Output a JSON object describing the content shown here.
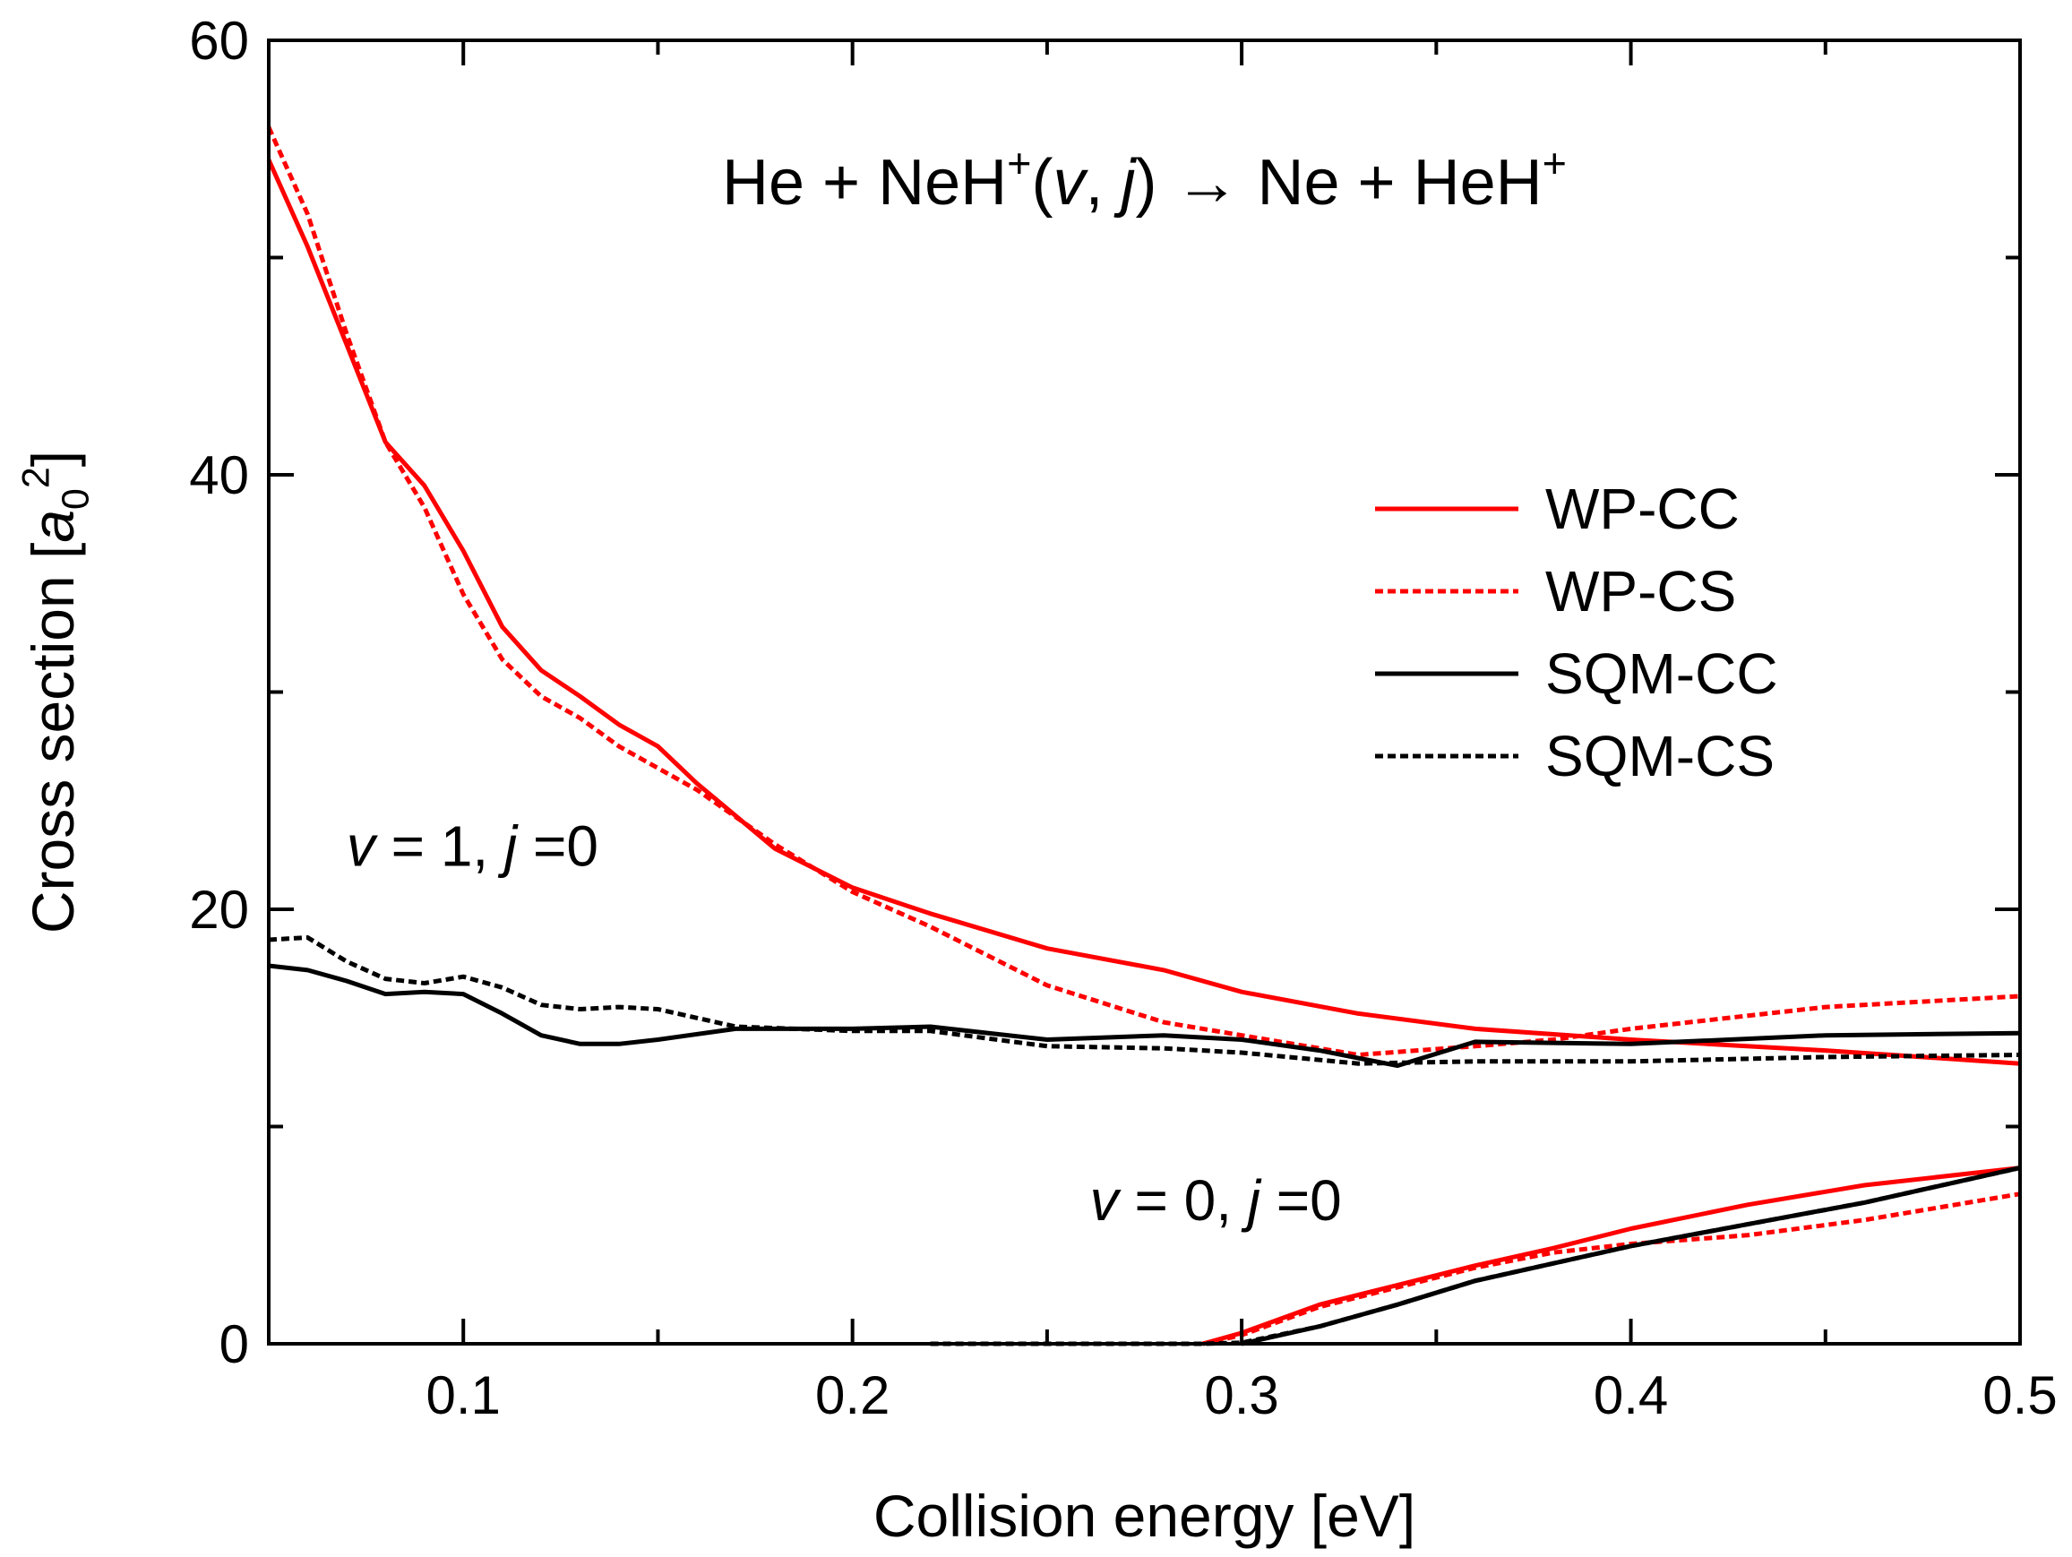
{
  "chart_data": {
    "type": "line",
    "title": {
      "parts": [
        {
          "text": "He + NeH",
          "style": "normal"
        },
        {
          "text": "+",
          "style": "sup"
        },
        {
          "text": "(",
          "style": "normal"
        },
        {
          "text": "v",
          "style": "italic"
        },
        {
          "text": ", ",
          "style": "normal"
        },
        {
          "text": "j",
          "style": "italic"
        },
        {
          "text": ") → Ne + HeH",
          "style": "normal"
        },
        {
          "text": "+",
          "style": "sup"
        }
      ]
    },
    "xlabel": "Collision energy [eV]",
    "ylabel": {
      "parts": [
        {
          "text": "Cross section [",
          "style": "normal"
        },
        {
          "text": "a",
          "style": "italic"
        },
        {
          "text": "0",
          "style": "sub"
        },
        {
          "text": "2",
          "style": "sup"
        },
        {
          "text": "]",
          "style": "normal"
        }
      ]
    },
    "xlim": [
      0.05,
      0.5
    ],
    "ylim": [
      0,
      60
    ],
    "xticks": [
      0.1,
      0.2,
      0.3,
      0.4,
      0.5
    ],
    "xtick_labels": [
      "0.1",
      "0.2",
      "0.3",
      "0.4",
      "0.5"
    ],
    "yticks": [
      0,
      20,
      40,
      60
    ],
    "ytick_labels": [
      "0",
      "20",
      "40",
      "60"
    ],
    "yminor": [
      10,
      30,
      50
    ],
    "grid": false,
    "legend": {
      "position": "right"
    },
    "colors": {
      "red": "#ff0000",
      "black": "#000000"
    },
    "annotations": [
      {
        "id": "v1",
        "x": 0.07,
        "y": 22,
        "parts": [
          {
            "text": "v",
            "style": "italic"
          },
          {
            "text": " = 1, ",
            "style": "normal"
          },
          {
            "text": "j",
            "style": "italic"
          },
          {
            "text": " =0",
            "style": "normal"
          }
        ]
      },
      {
        "id": "v0",
        "x": 0.261,
        "y": 5.7,
        "parts": [
          {
            "text": "v",
            "style": "italic"
          },
          {
            "text": " = 0, ",
            "style": "normal"
          },
          {
            "text": "j",
            "style": "italic"
          },
          {
            "text": " =0",
            "style": "normal"
          }
        ]
      }
    ],
    "series": [
      {
        "name": "WP-CC",
        "group": "v=1,j=0",
        "color": "#ff0000",
        "dash": "solid",
        "x": [
          0.05,
          0.06,
          0.07,
          0.08,
          0.09,
          0.1,
          0.11,
          0.12,
          0.13,
          0.14,
          0.15,
          0.16,
          0.18,
          0.2,
          0.22,
          0.25,
          0.28,
          0.3,
          0.33,
          0.36,
          0.4,
          0.45,
          0.5
        ],
        "y": [
          54.5,
          50.5,
          46,
          41.5,
          39.5,
          36.5,
          33,
          31,
          29.8,
          28.5,
          27.5,
          25.8,
          22.8,
          21,
          19.8,
          18.2,
          17.2,
          16.2,
          15.2,
          14.5,
          14,
          13.5,
          12.9
        ]
      },
      {
        "name": "WP-CS",
        "group": "v=1,j=0",
        "color": "#ff0000",
        "dash": "dashed",
        "x": [
          0.05,
          0.06,
          0.07,
          0.08,
          0.09,
          0.1,
          0.11,
          0.12,
          0.13,
          0.14,
          0.15,
          0.16,
          0.18,
          0.2,
          0.22,
          0.25,
          0.28,
          0.3,
          0.33,
          0.36,
          0.38,
          0.4,
          0.45,
          0.5
        ],
        "y": [
          56,
          52,
          46.5,
          41.5,
          38.5,
          34.5,
          31.5,
          29.8,
          28.8,
          27.5,
          26.5,
          25.5,
          23,
          20.8,
          19.2,
          16.5,
          14.8,
          14.2,
          13.3,
          13.7,
          14,
          14.5,
          15.5,
          16
        ]
      },
      {
        "name": "SQM-CC",
        "group": "v=1,j=0",
        "color": "#000000",
        "dash": "solid",
        "x": [
          0.05,
          0.06,
          0.07,
          0.08,
          0.09,
          0.1,
          0.11,
          0.12,
          0.13,
          0.14,
          0.15,
          0.17,
          0.2,
          0.22,
          0.25,
          0.28,
          0.3,
          0.32,
          0.34,
          0.36,
          0.4,
          0.45,
          0.5
        ],
        "y": [
          17.4,
          17.2,
          16.7,
          16.1,
          16.2,
          16.1,
          15.2,
          14.2,
          13.8,
          13.8,
          14,
          14.5,
          14.5,
          14.6,
          14,
          14.2,
          14,
          13.5,
          12.8,
          13.9,
          13.8,
          14.2,
          14.3
        ]
      },
      {
        "name": "SQM-CS",
        "group": "v=1,j=0",
        "color": "#000000",
        "dash": "dashed",
        "x": [
          0.05,
          0.06,
          0.07,
          0.08,
          0.09,
          0.1,
          0.11,
          0.12,
          0.13,
          0.14,
          0.15,
          0.17,
          0.2,
          0.22,
          0.25,
          0.28,
          0.3,
          0.33,
          0.36,
          0.4,
          0.45,
          0.5
        ],
        "y": [
          18.6,
          18.7,
          17.6,
          16.8,
          16.6,
          16.9,
          16.4,
          15.6,
          15.4,
          15.5,
          15.4,
          14.6,
          14.4,
          14.4,
          13.7,
          13.6,
          13.4,
          12.9,
          13,
          13,
          13.2,
          13.3
        ]
      },
      {
        "name": "WP-CC",
        "group": "v=0,j=0",
        "color": "#ff0000",
        "dash": "solid",
        "x": [
          0.29,
          0.3,
          0.32,
          0.34,
          0.36,
          0.38,
          0.4,
          0.43,
          0.46,
          0.5
        ],
        "y": [
          0,
          0.5,
          1.8,
          2.7,
          3.6,
          4.4,
          5.3,
          6.4,
          7.3,
          8.1
        ]
      },
      {
        "name": "WP-CS",
        "group": "v=0,j=0",
        "color": "#ff0000",
        "dash": "dashed",
        "x": [
          0.29,
          0.3,
          0.32,
          0.34,
          0.36,
          0.38,
          0.4,
          0.43,
          0.46,
          0.5
        ],
        "y": [
          0,
          0.4,
          1.7,
          2.6,
          3.5,
          4.2,
          4.6,
          5,
          5.7,
          6.9
        ]
      },
      {
        "name": "SQM-CC",
        "group": "v=0,j=0",
        "color": "#000000",
        "dash": "solid",
        "x": [
          0.3,
          0.32,
          0.34,
          0.36,
          0.38,
          0.4,
          0.43,
          0.46,
          0.5
        ],
        "y": [
          0,
          0.8,
          1.8,
          2.9,
          3.7,
          4.5,
          5.5,
          6.5,
          8.1
        ]
      },
      {
        "name": "SQM-CS",
        "group": "v=0,j=0",
        "color": "#000000",
        "dash": "dashed",
        "x": [
          0.22,
          0.26,
          0.29,
          0.3,
          0.32,
          0.34,
          0.36,
          0.38,
          0.4,
          0.43,
          0.46,
          0.5
        ],
        "y": [
          0,
          0,
          0,
          0.05,
          0.8,
          1.8,
          2.9,
          3.7,
          4.5,
          5.5,
          6.5,
          8.1
        ]
      }
    ],
    "legend_entries": [
      {
        "label": "WP-CC",
        "color": "#ff0000",
        "dash": "solid"
      },
      {
        "label": "WP-CS",
        "color": "#ff0000",
        "dash": "dashed"
      },
      {
        "label": "SQM-CC",
        "color": "#000000",
        "dash": "solid"
      },
      {
        "label": "SQM-CS",
        "color": "#000000",
        "dash": "dashed"
      }
    ]
  }
}
